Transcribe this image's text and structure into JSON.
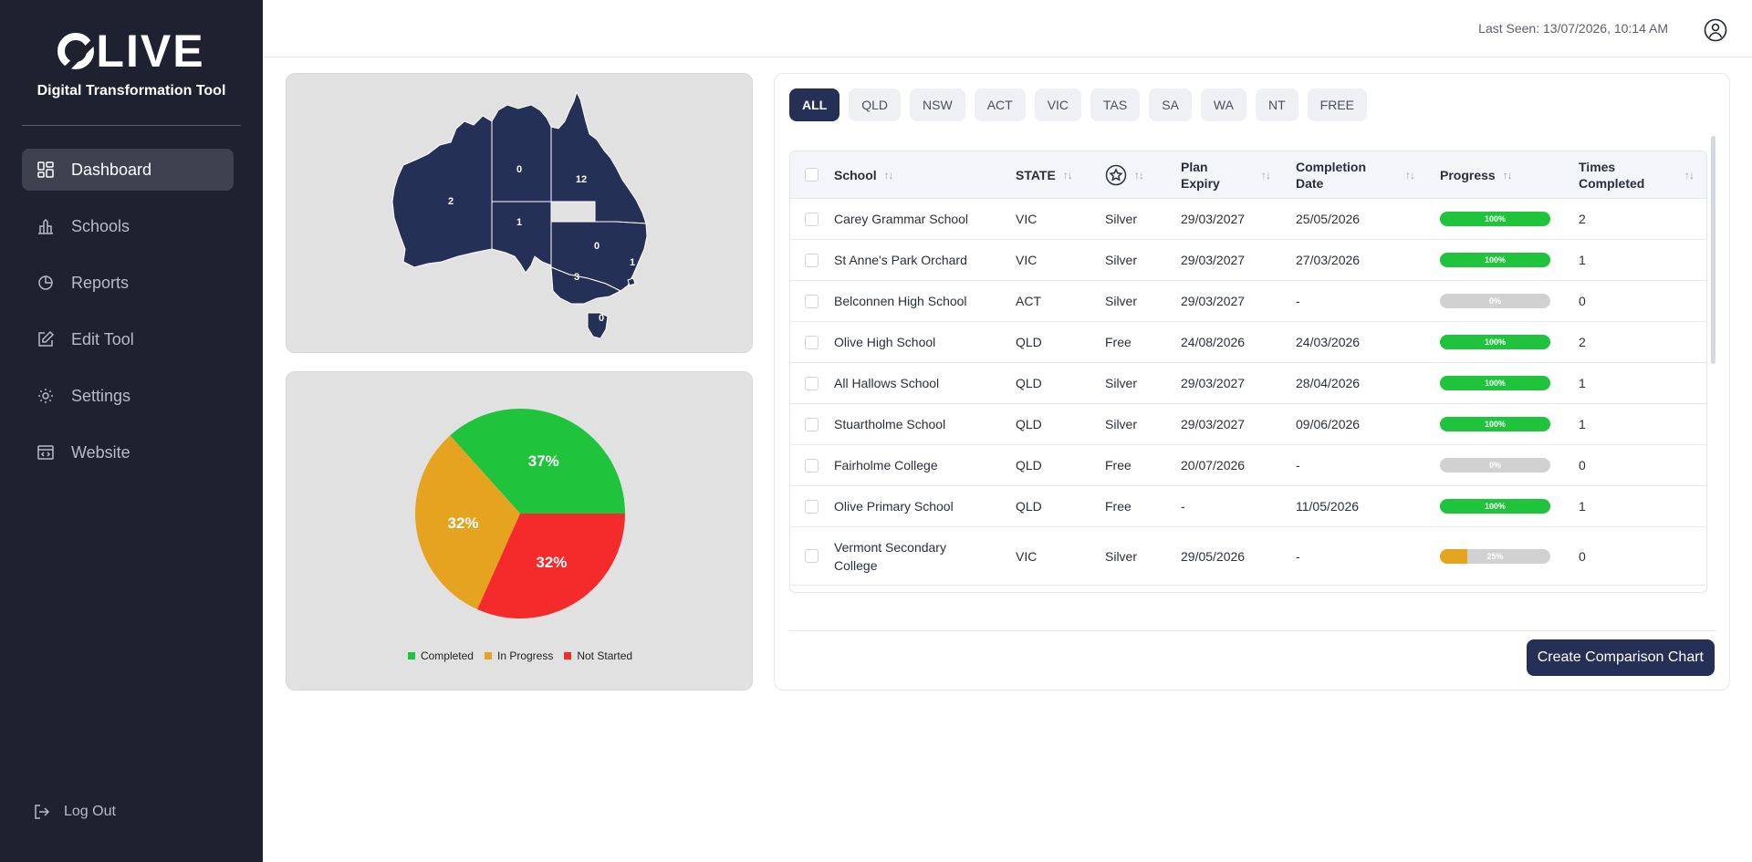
{
  "sidebar": {
    "logo": "LIVE",
    "subtitle": "Digital Transformation Tool",
    "items": [
      {
        "label": "Dashboard",
        "icon": "dashboard-icon",
        "active": true
      },
      {
        "label": "Schools",
        "icon": "schools-icon"
      },
      {
        "label": "Reports",
        "icon": "reports-icon"
      },
      {
        "label": "Edit Tool",
        "icon": "edit-icon"
      },
      {
        "label": "Settings",
        "icon": "settings-icon"
      },
      {
        "label": "Website",
        "icon": "website-icon"
      }
    ],
    "logout": "Log Out"
  },
  "topbar": {
    "last_seen": "Last Seen: 13/07/2026, 10:14 AM"
  },
  "map": {
    "counts": {
      "WA": "2",
      "NT": "0",
      "QLD": "12",
      "SA": "1",
      "NSW": "0",
      "ACT": "1",
      "VIC": "3",
      "TAS": "0"
    },
    "fill": "#243056"
  },
  "chart_data": {
    "type": "pie",
    "title": "",
    "labels": [
      "Completed",
      "In Progress",
      "Not Started"
    ],
    "values": [
      37,
      32,
      32
    ],
    "value_labels": [
      "37%",
      "32%",
      "32%"
    ],
    "colors": [
      "#1fc43c",
      "#e5a31f",
      "#f52a2a"
    ],
    "legend_position": "bottom"
  },
  "filters": [
    "ALL",
    "QLD",
    "NSW",
    "ACT",
    "VIC",
    "TAS",
    "SA",
    "WA",
    "NT",
    "FREE"
  ],
  "table": {
    "headers": {
      "school": "School",
      "state": "STATE",
      "plan_expiry_1": "Plan",
      "plan_expiry_2": "Expiry",
      "completion_1": "Completion",
      "completion_2": "Date",
      "progress": "Progress",
      "times_1": "Times",
      "times_2": "Completed"
    },
    "rows": [
      {
        "school": "Carey Grammar School",
        "state": "VIC",
        "plan": "Silver",
        "expiry": "29/03/2027",
        "completion": "25/05/2026",
        "progress": 100,
        "progress_label": "100%",
        "times": "2"
      },
      {
        "school": "St Anne's Park Orchard",
        "state": "VIC",
        "plan": "Silver",
        "expiry": "29/03/2027",
        "completion": "27/03/2026",
        "progress": 100,
        "progress_label": "100%",
        "times": "1"
      },
      {
        "school": "Belconnen High School",
        "state": "ACT",
        "plan": "Silver",
        "expiry": "29/03/2027",
        "completion": "-",
        "progress": 0,
        "progress_label": "0%",
        "times": "0"
      },
      {
        "school": "Olive High School",
        "state": "QLD",
        "plan": "Free",
        "expiry": "24/08/2026",
        "completion": "24/03/2026",
        "progress": 100,
        "progress_label": "100%",
        "times": "2"
      },
      {
        "school": "All Hallows School",
        "state": "QLD",
        "plan": "Silver",
        "expiry": "29/03/2027",
        "completion": "28/04/2026",
        "progress": 100,
        "progress_label": "100%",
        "times": "1"
      },
      {
        "school": "Stuartholme School",
        "state": "QLD",
        "plan": "Silver",
        "expiry": "29/03/2027",
        "completion": "09/06/2026",
        "progress": 100,
        "progress_label": "100%",
        "times": "1"
      },
      {
        "school": "Fairholme College",
        "state": "QLD",
        "plan": "Free",
        "expiry": "20/07/2026",
        "completion": "-",
        "progress": 0,
        "progress_label": "0%",
        "times": "0"
      },
      {
        "school": "Olive Primary School",
        "state": "QLD",
        "plan": "Free",
        "expiry": "-",
        "completion": "11/05/2026",
        "progress": 100,
        "progress_label": "100%",
        "times": "1"
      },
      {
        "school_1": "Vermont Secondary",
        "school_2": "College",
        "state": "VIC",
        "plan": "Silver",
        "expiry": "29/05/2026",
        "completion": "-",
        "progress": 25,
        "progress_label": "25%",
        "times": "0"
      }
    ]
  },
  "cta_label": "Create Comparison Chart",
  "colors": {
    "sidebar": "#1e2230",
    "accent": "#243056",
    "complete": "#1fc43c",
    "partial": "#e5a31f",
    "empty": "#d1d1d1"
  }
}
